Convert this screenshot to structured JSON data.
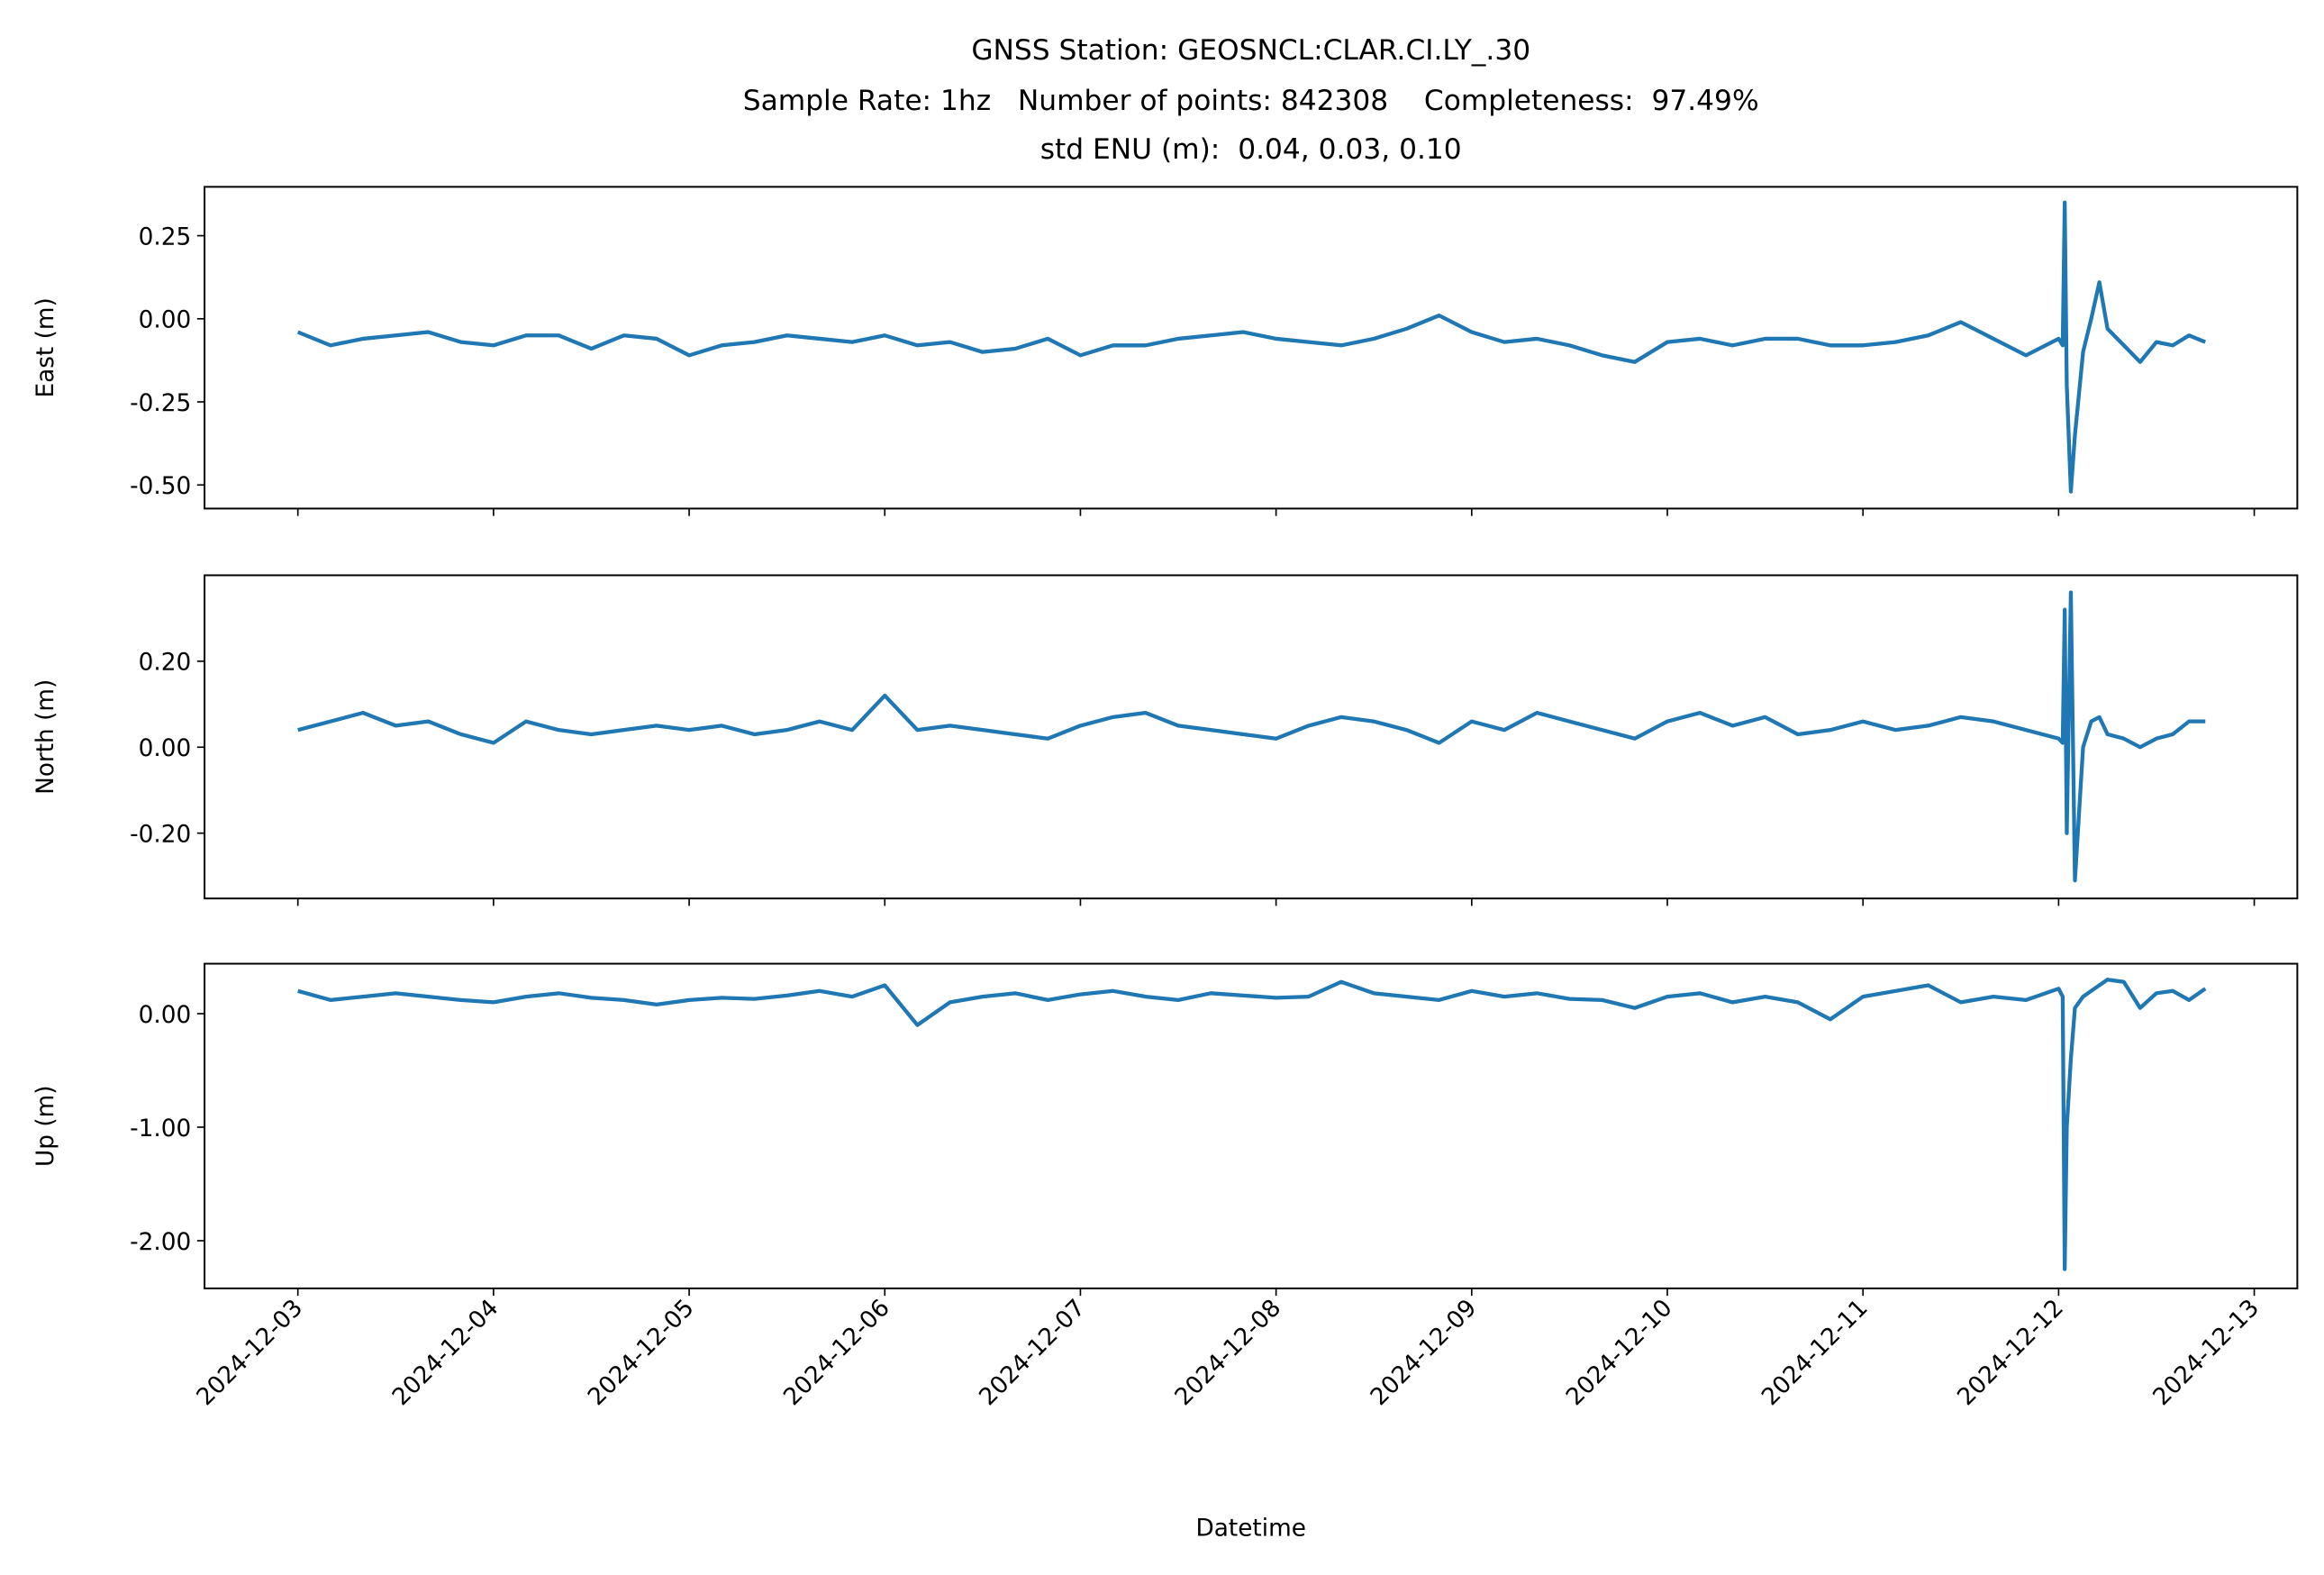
{
  "chart_data": {
    "type": "line",
    "title": [
      "GNSS Station: GEOSNCL:CLAR.CI.LY_.30",
      "Sample Rate: 1hz   Number of points: 842308    Completeness:  97.49%",
      "std ENU (m):  0.04, 0.03, 0.10"
    ],
    "xlabel": "Datetime",
    "xlim": [
      "2024-12-02T12:33",
      "2024-12-13T05:17"
    ],
    "xticks": [
      "2024-12-03",
      "2024-12-04",
      "2024-12-05",
      "2024-12-06",
      "2024-12-07",
      "2024-12-08",
      "2024-12-09",
      "2024-12-10",
      "2024-12-11",
      "2024-12-12",
      "2024-12-13"
    ],
    "x": [
      "2024-12-03T00:00",
      "2024-12-03T04:00",
      "2024-12-03T08:00",
      "2024-12-03T12:00",
      "2024-12-03T16:00",
      "2024-12-03T20:00",
      "2024-12-04T00:00",
      "2024-12-04T04:00",
      "2024-12-04T08:00",
      "2024-12-04T12:00",
      "2024-12-04T16:00",
      "2024-12-04T20:00",
      "2024-12-05T00:00",
      "2024-12-05T04:00",
      "2024-12-05T08:00",
      "2024-12-05T12:00",
      "2024-12-05T16:00",
      "2024-12-05T20:00",
      "2024-12-06T00:00",
      "2024-12-06T04:00",
      "2024-12-06T08:00",
      "2024-12-06T12:00",
      "2024-12-06T16:00",
      "2024-12-06T20:00",
      "2024-12-07T00:00",
      "2024-12-07T04:00",
      "2024-12-07T08:00",
      "2024-12-07T12:00",
      "2024-12-07T16:00",
      "2024-12-07T20:00",
      "2024-12-08T00:00",
      "2024-12-08T04:00",
      "2024-12-08T08:00",
      "2024-12-08T12:00",
      "2024-12-08T16:00",
      "2024-12-08T20:00",
      "2024-12-09T00:00",
      "2024-12-09T04:00",
      "2024-12-09T08:00",
      "2024-12-09T12:00",
      "2024-12-09T16:00",
      "2024-12-09T20:00",
      "2024-12-10T00:00",
      "2024-12-10T04:00",
      "2024-12-10T08:00",
      "2024-12-10T12:00",
      "2024-12-10T16:00",
      "2024-12-10T20:00",
      "2024-12-11T00:00",
      "2024-12-11T04:00",
      "2024-12-11T08:00",
      "2024-12-11T12:00",
      "2024-12-11T16:00",
      "2024-12-11T20:00",
      "2024-12-12T00:00",
      "2024-12-12T00:30",
      "2024-12-12T00:45",
      "2024-12-12T01:00",
      "2024-12-12T01:30",
      "2024-12-12T02:00",
      "2024-12-12T03:00",
      "2024-12-12T04:00",
      "2024-12-12T05:00",
      "2024-12-12T06:00",
      "2024-12-12T08:00",
      "2024-12-12T10:00",
      "2024-12-12T12:00",
      "2024-12-12T14:00",
      "2024-12-12T16:00",
      "2024-12-12T18:00"
    ],
    "panels": [
      {
        "ylabel": "East (m)",
        "ylim": [
          -0.571,
          0.397
        ],
        "yticks": [
          0.25,
          {
            "value": 0,
            "label": "0.00"
          },
          {
            "value": -0.25,
            "label": "-0.25"
          },
          {
            "value": -0.5,
            "label": "-0.50"
          }
        ],
        "series": [
          {
            "color": "#1f77b4",
            "values": [
              -0.04,
              -0.08,
              -0.06,
              -0.05,
              -0.04,
              -0.07,
              -0.08,
              -0.05,
              -0.05,
              -0.09,
              -0.05,
              -0.06,
              -0.11,
              -0.08,
              -0.07,
              -0.05,
              -0.06,
              -0.07,
              -0.05,
              -0.08,
              -0.07,
              -0.1,
              -0.09,
              -0.06,
              -0.11,
              -0.08,
              -0.08,
              -0.06,
              -0.05,
              -0.04,
              -0.06,
              -0.07,
              -0.08,
              -0.06,
              -0.03,
              0.01,
              -0.04,
              -0.07,
              -0.06,
              -0.08,
              -0.11,
              -0.13,
              -0.07,
              -0.06,
              -0.08,
              -0.06,
              -0.06,
              -0.08,
              -0.08,
              -0.07,
              -0.05,
              -0.01,
              -0.06,
              -0.11,
              -0.06,
              -0.08,
              0.35,
              -0.2,
              -0.52,
              -0.35,
              -0.1,
              0.0,
              0.11,
              -0.03,
              -0.08,
              -0.13,
              -0.07,
              -0.08,
              -0.05,
              -0.07
            ]
          }
        ]
      },
      {
        "ylabel": "North (m)",
        "ylim": [
          -0.352,
          0.4
        ],
        "yticks": [
          {
            "value": 0.2,
            "label": "0.20"
          },
          {
            "value": 0,
            "label": "0.00"
          },
          {
            "value": -0.2,
            "label": "-0.20"
          }
        ],
        "series": [
          {
            "color": "#1f77b4",
            "values": [
              0.04,
              0.06,
              0.08,
              0.05,
              0.06,
              0.03,
              0.01,
              0.06,
              0.04,
              0.03,
              0.04,
              0.05,
              0.04,
              0.05,
              0.03,
              0.04,
              0.06,
              0.04,
              0.12,
              0.04,
              0.05,
              0.04,
              0.03,
              0.02,
              0.05,
              0.07,
              0.08,
              0.05,
              0.04,
              0.03,
              0.02,
              0.05,
              0.07,
              0.06,
              0.04,
              0.01,
              0.06,
              0.04,
              0.08,
              0.06,
              0.04,
              0.02,
              0.06,
              0.08,
              0.05,
              0.07,
              0.03,
              0.04,
              0.06,
              0.04,
              0.05,
              0.07,
              0.06,
              0.04,
              0.02,
              0.01,
              0.32,
              -0.2,
              0.36,
              -0.31,
              0.0,
              0.06,
              0.07,
              0.03,
              0.02,
              0.0,
              0.02,
              0.03,
              0.06,
              0.06
            ]
          }
        ]
      },
      {
        "ylabel": "Up (m)",
        "ylim": [
          -2.42,
          0.44
        ],
        "yticks": [
          {
            "value": 0,
            "label": "0.00"
          },
          {
            "value": -1,
            "label": "-1.00"
          },
          {
            "value": -2,
            "label": "-2.00"
          }
        ],
        "series": [
          {
            "color": "#1f77b4",
            "values": [
              0.2,
              0.12,
              0.15,
              0.18,
              0.15,
              0.12,
              0.1,
              0.15,
              0.18,
              0.14,
              0.12,
              0.08,
              0.12,
              0.14,
              0.13,
              0.16,
              0.2,
              0.15,
              0.25,
              -0.1,
              0.1,
              0.15,
              0.18,
              0.12,
              0.17,
              0.2,
              0.15,
              0.12,
              0.18,
              0.16,
              0.14,
              0.15,
              0.28,
              0.18,
              0.15,
              0.12,
              0.2,
              0.15,
              0.18,
              0.13,
              0.12,
              0.05,
              0.15,
              0.18,
              0.1,
              0.15,
              0.1,
              -0.05,
              0.15,
              0.2,
              0.25,
              0.1,
              0.15,
              0.12,
              0.22,
              0.15,
              -2.25,
              -1.0,
              -0.4,
              0.05,
              0.15,
              0.2,
              0.25,
              0.3,
              0.28,
              0.05,
              0.18,
              0.2,
              0.12,
              0.22
            ]
          }
        ]
      }
    ]
  }
}
